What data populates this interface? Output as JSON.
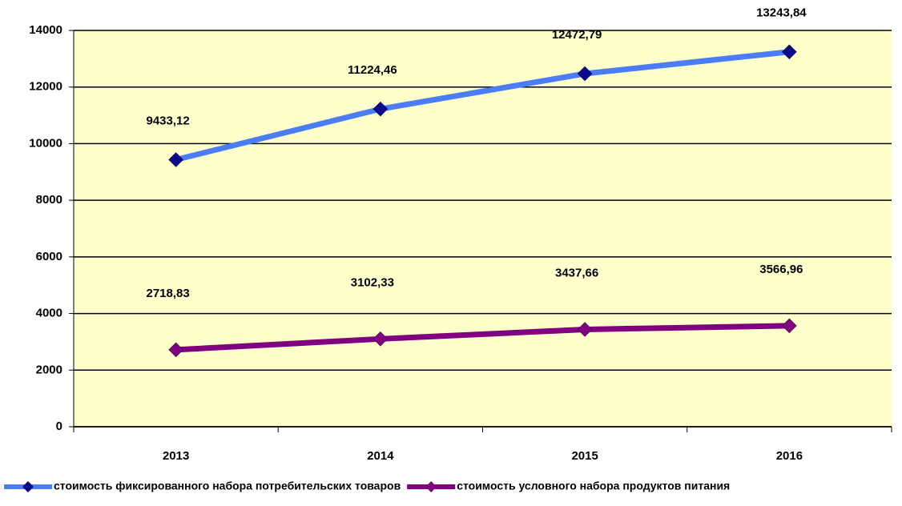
{
  "chart_data": {
    "type": "line",
    "categories": [
      "2013",
      "2014",
      "2015",
      "2016"
    ],
    "series": [
      {
        "name": "стоимость фиксированного набора потребительских товаров",
        "color": "#4a7df7",
        "marker_color": "#0a0a8c",
        "values": [
          9433.12,
          11224.46,
          12472.79,
          13243.84
        ],
        "value_labels": [
          "9433,12",
          "11224,46",
          "12472,79",
          "13243,84"
        ]
      },
      {
        "name": "стоимость условного набора продуктов питания",
        "color": "#800080",
        "marker_color": "#800080",
        "values": [
          2718.83,
          3102.33,
          3437.66,
          3566.96
        ],
        "value_labels": [
          "2718,83",
          "3102,33",
          "3437,66",
          "3566,96"
        ]
      }
    ],
    "ylim": [
      0,
      14000
    ],
    "yticks": [
      0,
      2000,
      4000,
      6000,
      8000,
      10000,
      12000,
      14000
    ],
    "grid": true,
    "plot_background": "#ffffcc",
    "legend": "bottom"
  }
}
